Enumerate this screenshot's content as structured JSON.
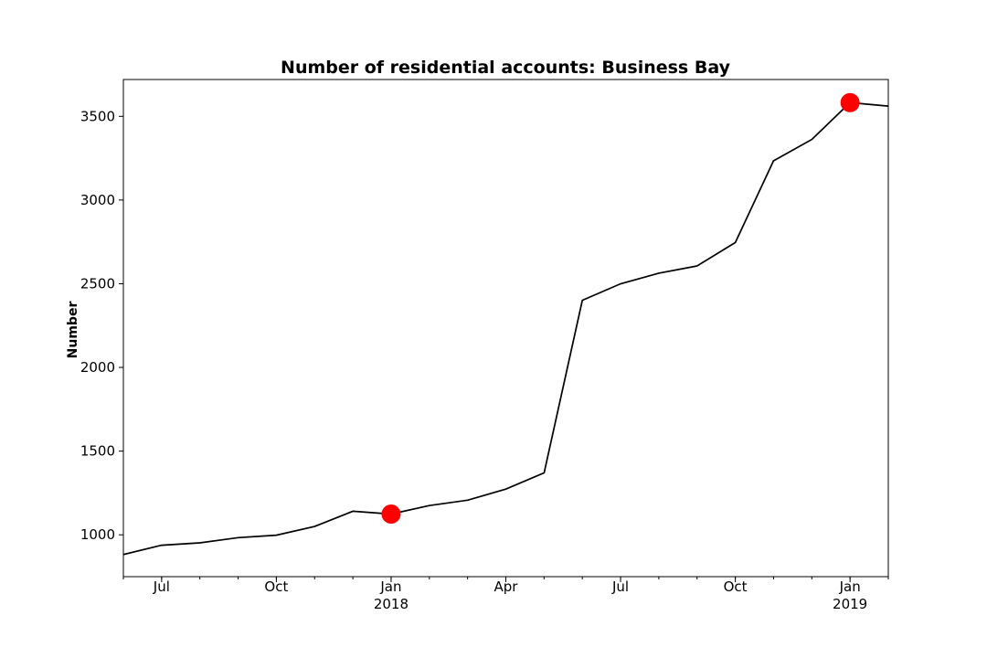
{
  "chart_data": {
    "type": "line",
    "title": "Number of residential accounts: Business Bay",
    "xlabel": "",
    "ylabel": "Number",
    "x": [
      "2017-06",
      "2017-07",
      "2017-08",
      "2017-09",
      "2017-10",
      "2017-11",
      "2017-12",
      "2018-01",
      "2018-02",
      "2018-03",
      "2018-04",
      "2018-05",
      "2018-06",
      "2018-07",
      "2018-08",
      "2018-09",
      "2018-10",
      "2018-11",
      "2018-12",
      "2019-01",
      "2019-02"
    ],
    "series": [
      {
        "values": [
          882,
          938,
          952,
          983,
          998,
          1050,
          1141,
          1124,
          1175,
          1207,
          1273,
          1370,
          2401,
          2500,
          2563,
          2606,
          2746,
          3234,
          3362,
          3582,
          3561
        ],
        "color": "#000000"
      }
    ],
    "highlights": [
      {
        "x": "2018-01",
        "value": 1124,
        "color": "#ff0000"
      },
      {
        "x": "2019-01",
        "value": 3582,
        "color": "#ff0000"
      }
    ],
    "xlim": [
      "2017-06",
      "2019-02"
    ],
    "ylim": [
      750,
      3720
    ],
    "yticks": [
      1000,
      1500,
      2000,
      2500,
      3000,
      3500
    ],
    "xticks": [
      {
        "x": "2017-07",
        "label": "Jul",
        "sublabel": ""
      },
      {
        "x": "2017-10",
        "label": "Oct",
        "sublabel": ""
      },
      {
        "x": "2018-01",
        "label": "Jan",
        "sublabel": "2018"
      },
      {
        "x": "2018-04",
        "label": "Apr",
        "sublabel": ""
      },
      {
        "x": "2018-07",
        "label": "Jul",
        "sublabel": ""
      },
      {
        "x": "2018-10",
        "label": "Oct",
        "sublabel": ""
      },
      {
        "x": "2019-01",
        "label": "Jan",
        "sublabel": "2019"
      }
    ],
    "grid": false,
    "legend": "none"
  }
}
